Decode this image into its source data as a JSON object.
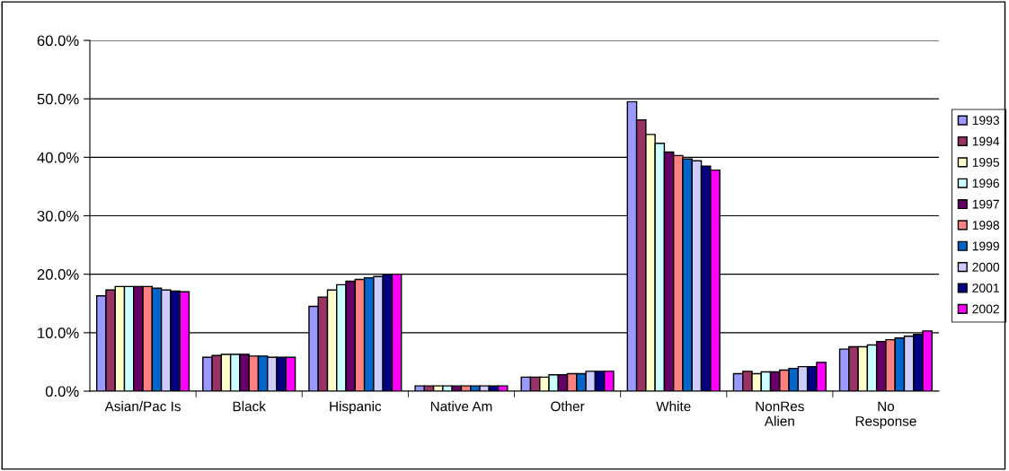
{
  "chart_data": {
    "type": "bar",
    "categories": [
      "Asian/Pac Is",
      "Black",
      "Hispanic",
      "Native Am",
      "Other",
      "White",
      "NonRes\nAlien",
      "No\nResponse"
    ],
    "series": [
      {
        "name": "1993",
        "color": "#9999ff",
        "values": [
          16.3,
          5.8,
          14.5,
          0.9,
          2.4,
          49.5,
          3.0,
          7.2
        ]
      },
      {
        "name": "1994",
        "color": "#993366",
        "values": [
          17.3,
          6.1,
          16.1,
          0.9,
          2.4,
          46.4,
          3.4,
          7.6
        ]
      },
      {
        "name": "1995",
        "color": "#ffffcc",
        "values": [
          17.9,
          6.3,
          17.3,
          0.9,
          2.4,
          43.9,
          3.0,
          7.6
        ]
      },
      {
        "name": "1996",
        "color": "#ccffff",
        "values": [
          17.9,
          6.3,
          18.2,
          0.9,
          2.8,
          42.4,
          3.3,
          7.9
        ]
      },
      {
        "name": "1997",
        "color": "#660066",
        "values": [
          17.9,
          6.3,
          18.8,
          0.9,
          2.8,
          40.9,
          3.3,
          8.5
        ]
      },
      {
        "name": "1998",
        "color": "#ff8080",
        "values": [
          17.9,
          6.0,
          19.1,
          0.9,
          3.0,
          40.3,
          3.6,
          8.8
        ]
      },
      {
        "name": "1999",
        "color": "#0066cc",
        "values": [
          17.6,
          6.0,
          19.4,
          0.9,
          3.0,
          39.7,
          3.9,
          9.1
        ]
      },
      {
        "name": "2000",
        "color": "#ccccff",
        "values": [
          17.3,
          5.8,
          19.6,
          0.9,
          3.4,
          39.4,
          4.2,
          9.4
        ]
      },
      {
        "name": "2001",
        "color": "#000080",
        "values": [
          17.1,
          5.8,
          20.0,
          0.9,
          3.4,
          38.5,
          4.2,
          9.7
        ]
      },
      {
        "name": "2002",
        "color": "#ff00ff",
        "values": [
          17.0,
          5.8,
          20.0,
          0.9,
          3.4,
          37.8,
          4.9,
          10.3
        ]
      }
    ],
    "ylim": [
      0,
      60
    ],
    "yticks": [
      {
        "value": 0,
        "label": "0.0%"
      },
      {
        "value": 10,
        "label": "10.0%"
      },
      {
        "value": 20,
        "label": "20.0%"
      },
      {
        "value": 30,
        "label": "30.0%"
      },
      {
        "value": 40,
        "label": "40.0%"
      },
      {
        "value": 50,
        "label": "50.0%"
      },
      {
        "value": 60,
        "label": "60.0%"
      }
    ],
    "grid": "y",
    "legend": "right"
  }
}
